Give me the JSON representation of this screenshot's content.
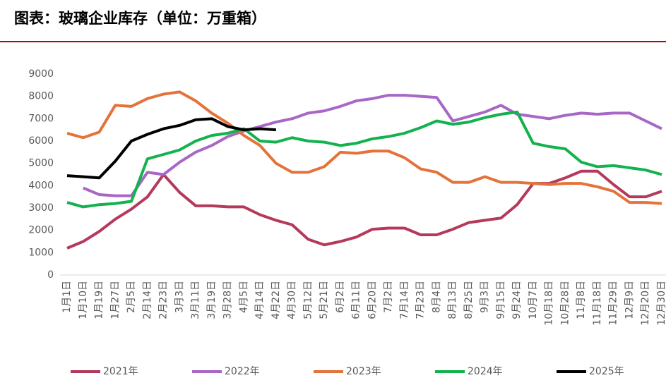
{
  "chart_data": {
    "type": "line",
    "title": "图表：玻璃企业库存（单位：万重箱）",
    "categories": [
      "1月1日",
      "1月10日",
      "1月19日",
      "1月27日",
      "2月5日",
      "2月14日",
      "2月23日",
      "3月3日",
      "3月11日",
      "3月19日",
      "3月28日",
      "4月5日",
      "4月14日",
      "4月22日",
      "4月30日",
      "5月12日",
      "5月21日",
      "6月2日",
      "6月11日",
      "6月20日",
      "7月2日",
      "7月14日",
      "7月23日",
      "8月4日",
      "8月13日",
      "8月25日",
      "9月3日",
      "9月15日",
      "9月24日",
      "10月7日",
      "10月18日",
      "10月28日",
      "11月8日",
      "11月18日",
      "11月29日",
      "12月9日",
      "12月20日",
      "12月30日"
    ],
    "ylim": [
      0,
      9000
    ],
    "yticks": [
      0,
      1000,
      2000,
      3000,
      4000,
      5000,
      6000,
      7000,
      8000,
      9000
    ],
    "grid": false,
    "series": [
      {
        "name": "2021年",
        "color": "#b5395b",
        "values": [
          1200,
          1500,
          1950,
          2500,
          2950,
          3500,
          4500,
          3700,
          3100,
          3100,
          3050,
          3050,
          2700,
          2450,
          2250,
          1600,
          1350,
          1500,
          1700,
          2050,
          2100,
          2100,
          1800,
          1800,
          2050,
          2350,
          2450,
          2550,
          3150,
          4100,
          4100,
          4350,
          4650,
          4650,
          4050,
          3500,
          3500,
          3750
        ]
      },
      {
        "name": "2022年",
        "color": "#a867c6",
        "values": [
          null,
          3900,
          3600,
          3550,
          3550,
          4600,
          4500,
          5050,
          5500,
          5800,
          6200,
          6450,
          6650,
          6850,
          7000,
          7250,
          7350,
          7550,
          7800,
          7900,
          8050,
          8050,
          8000,
          7950,
          6900,
          7100,
          7300,
          7600,
          7200,
          7100,
          7000,
          7150,
          7250,
          7200,
          7250,
          7250,
          6900,
          6550
        ]
      },
      {
        "name": "2023年",
        "color": "#e3733a",
        "values": [
          6350,
          6150,
          6400,
          7600,
          7550,
          7900,
          8100,
          8200,
          7800,
          7250,
          6800,
          6250,
          5800,
          5000,
          4600,
          4600,
          4850,
          5500,
          5450,
          5550,
          5550,
          5250,
          4750,
          4600,
          4150,
          4150,
          4400,
          4150,
          4150,
          4100,
          4050,
          4100,
          4100,
          3950,
          3750,
          3250,
          3250,
          3200
        ]
      },
      {
        "name": "2024年",
        "color": "#13b24e",
        "values": [
          3250,
          3050,
          3150,
          3200,
          3300,
          5200,
          5400,
          5600,
          6000,
          6250,
          6350,
          6550,
          6000,
          5950,
          6150,
          6000,
          5950,
          5800,
          5900,
          6100,
          6200,
          6350,
          6600,
          6900,
          6750,
          6850,
          7050,
          7200,
          7300,
          5900,
          5750,
          5650,
          5050,
          4850,
          4900,
          4800,
          4700,
          4500
        ]
      },
      {
        "name": "2025年",
        "color": "#000000",
        "values": [
          4450,
          4400,
          4350,
          5100,
          6000,
          6300,
          6550,
          6700,
          6950,
          7000,
          6650,
          6500,
          6550,
          6500,
          null,
          null,
          null,
          null,
          null,
          null,
          null,
          null,
          null,
          null,
          null,
          null,
          null,
          null,
          null,
          null,
          null,
          null,
          null,
          null,
          null,
          null,
          null,
          null
        ]
      }
    ]
  }
}
